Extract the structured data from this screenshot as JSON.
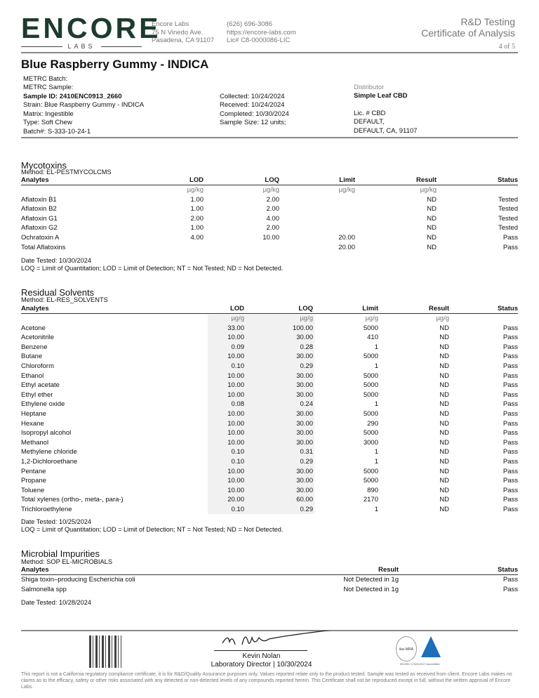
{
  "header": {
    "logo": "ENCORE",
    "logo_sub": "LABS",
    "lab_name": "Encore Labs",
    "address1": "75 N Vinedo Ave.",
    "address2": "Pasadena, CA 91107",
    "phone": "(626) 696-3086",
    "website": "https://encore-labs.com",
    "license": "Lic# C8-0000086-LIC",
    "doc_type1": "R&D Testing",
    "doc_type2": "Certificate of Analysis",
    "page": "4 of 5"
  },
  "product": {
    "title": "Blue Raspberry Gummy - INDICA",
    "metrc_batch": "METRC Batch:",
    "metrc_sample": "METRC Sample:",
    "sample_id": "Sample ID: 2410ENC0913_2660",
    "strain": "Strain: Blue Raspberry Gummy - INDICA",
    "matrix": "Matrix: Ingestible",
    "type": "Type: Soft Chew",
    "batch": "Batch#: S-333-10-24-1",
    "collected": "Collected: 10/24/2024",
    "received": "Received: 10/24/2024",
    "completed": "Completed: 10/30/2024",
    "sample_size": "Sample Size: 12 units;",
    "distributor_label": "Distributor",
    "distributor": "Simple Leaf CBD",
    "lic": "Lic. # CBD",
    "dist_addr1": "DEFAULT,",
    "dist_addr2": "DEFAULT, CA, 91107"
  },
  "mycotoxins": {
    "title": "Mycotoxins",
    "method": "Method: EL-PESTMYCOLCMS",
    "headers": [
      "Analytes",
      "LOD",
      "LOQ",
      "Limit",
      "Result",
      "Status"
    ],
    "units": [
      "",
      "µg/kg",
      "µg/kg",
      "µg/kg",
      "µg/kg",
      ""
    ],
    "rows": [
      [
        "Aflatoxin B1",
        "1.00",
        "2.00",
        "",
        "ND",
        "Tested"
      ],
      [
        "Aflatoxin B2",
        "1.00",
        "2.00",
        "",
        "ND",
        "Tested"
      ],
      [
        "Aflatoxin G1",
        "2.00",
        "4.00",
        "",
        "ND",
        "Tested"
      ],
      [
        "Aflatoxin G2",
        "1.00",
        "2.00",
        "",
        "ND",
        "Tested"
      ],
      [
        "Ochratoxin A",
        "4.00",
        "10.00",
        "20.00",
        "ND",
        "Pass"
      ],
      [
        "Total Aflatoxins",
        "",
        "",
        "20.00",
        "ND",
        "Pass"
      ]
    ],
    "date_tested": "Date Tested: 10/30/2024",
    "legend": "LOQ = Limit of Quantitation; LOD = Limit of Detection; NT = Not Tested; ND = Not Detected."
  },
  "solvents": {
    "title": "Residual Solvents",
    "method": "Method: EL-RES_SOLVENTS",
    "headers": [
      "Analytes",
      "LOD",
      "LOQ",
      "Limit",
      "Result",
      "Status"
    ],
    "units": [
      "",
      "µg/g",
      "µg/g",
      "µg/g",
      "µg/g",
      ""
    ],
    "rows": [
      [
        "Acetone",
        "33.00",
        "100.00",
        "5000",
        "ND",
        "Pass"
      ],
      [
        "Acetonitrile",
        "10.00",
        "30.00",
        "410",
        "ND",
        "Pass"
      ],
      [
        "Benzene",
        "0.09",
        "0.28",
        "1",
        "ND",
        "Pass"
      ],
      [
        "Butane",
        "10.00",
        "30.00",
        "5000",
        "ND",
        "Pass"
      ],
      [
        "Chloroform",
        "0.10",
        "0.29",
        "1",
        "ND",
        "Pass"
      ],
      [
        "Ethanol",
        "10.00",
        "30.00",
        "5000",
        "ND",
        "Pass"
      ],
      [
        "Ethyl acetate",
        "10.00",
        "30.00",
        "5000",
        "ND",
        "Pass"
      ],
      [
        "Ethyl ether",
        "10.00",
        "30.00",
        "5000",
        "ND",
        "Pass"
      ],
      [
        "Ethylene oxide",
        "0.08",
        "0.24",
        "1",
        "ND",
        "Pass"
      ],
      [
        "Heptane",
        "10.00",
        "30.00",
        "5000",
        "ND",
        "Pass"
      ],
      [
        "Hexane",
        "10.00",
        "30.00",
        "290",
        "ND",
        "Pass"
      ],
      [
        "Isopropyl alcohol",
        "10.00",
        "30.00",
        "5000",
        "ND",
        "Pass"
      ],
      [
        "Methanol",
        "10.00",
        "30.00",
        "3000",
        "ND",
        "Pass"
      ],
      [
        "Methylene chloride",
        "0.10",
        "0.31",
        "1",
        "ND",
        "Pass"
      ],
      [
        "1,2-Dichloroethane",
        "0.10",
        "0.29",
        "1",
        "ND",
        "Pass"
      ],
      [
        "Pentane",
        "10.00",
        "30.00",
        "5000",
        "ND",
        "Pass"
      ],
      [
        "Propane",
        "10.00",
        "30.00",
        "5000",
        "ND",
        "Pass"
      ],
      [
        "Toluene",
        "10.00",
        "30.00",
        "890",
        "ND",
        "Pass"
      ],
      [
        "Total xylenes (ortho-, meta-, para-)",
        "20.00",
        "60.00",
        "2170",
        "ND",
        "Pass"
      ],
      [
        "Trichloroethylene",
        "0.10",
        "0.29",
        "1",
        "ND",
        "Pass"
      ]
    ],
    "date_tested": "Date Tested: 10/25/2024",
    "legend": "LOQ = Limit of Quantitation; LOD = Limit of Detection; NT = Not Tested; ND = Not Detected."
  },
  "microbial": {
    "title": "Microbial Impurities",
    "method": "Method: SOP EL-MICROBIALS",
    "headers": [
      "Analytes",
      "Result",
      "Status"
    ],
    "rows": [
      [
        "Shiga toxin–producing Escherichia coli",
        "Not Detected in 1g",
        "Pass"
      ],
      [
        "Salmonella spp",
        "Not Detected in 1g",
        "Pass"
      ]
    ],
    "date_tested": "Date Tested: 10/28/2024"
  },
  "signature": {
    "signature_text": "K Nolan",
    "name": "Kevin Nolan",
    "role": "Laboratory Director | 10/30/2024"
  },
  "accreditation": {
    "ilac": "ilac-MRA",
    "pjla": "PJLA Testing",
    "iso": "ISO/IEC 17025:2017 Accredited"
  },
  "disclaimer": "This report is not a California regulatory compliance certificate, it is for R&D/Quality Assurance purposes only. Values reported relate only to the product tested. Sample was tested as received from client. Encore Labs makes no claims as to the efficacy, safety or other risks associated with any detected or non-detected levels of any compounds reported herein. This Certificate shall not be reproduced except in full, without the written approval of Encore Labs.",
  "colors": {
    "brand": "#1d3b2e"
  }
}
